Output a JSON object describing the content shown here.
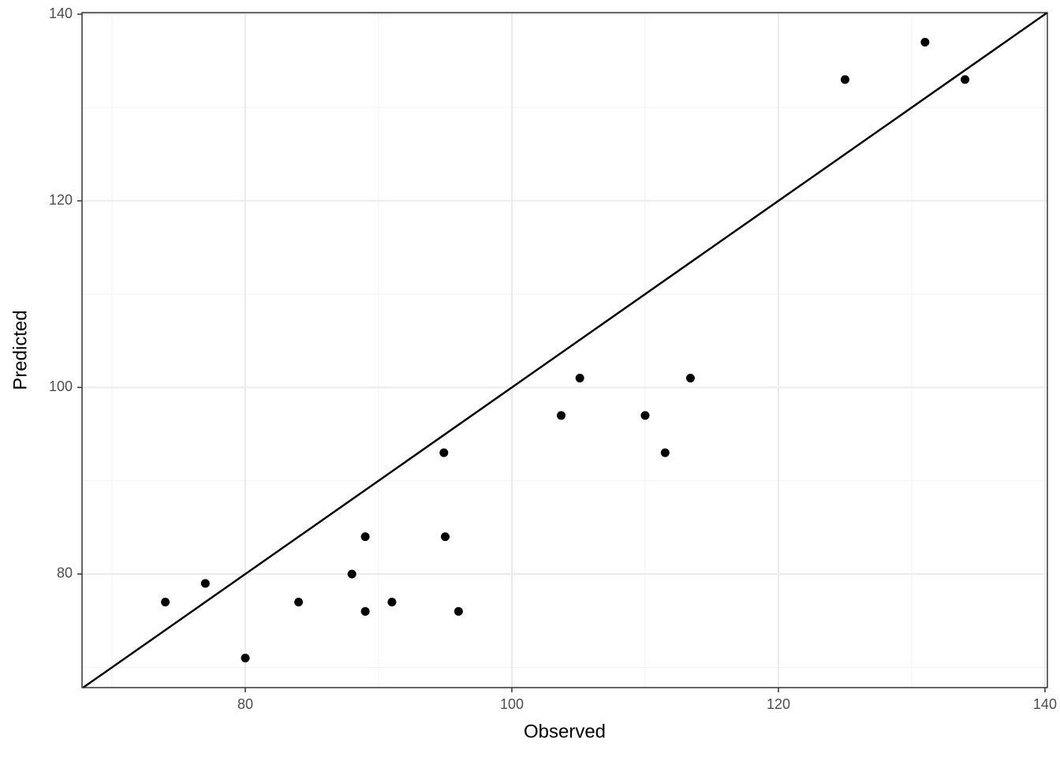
{
  "chart_data": {
    "type": "scatter",
    "x_label": "Observed",
    "y_label": "Predicted",
    "x": [
      74,
      77,
      80,
      84,
      88,
      89,
      89,
      91,
      94.9,
      95,
      96,
      103.7,
      105.1,
      110,
      111.5,
      113.4,
      125,
      131,
      134
    ],
    "series": [
      {
        "color": "#000000",
        "values": [
          77,
          79,
          71,
          77,
          80,
          84,
          76,
          77,
          93,
          84,
          76,
          97,
          101,
          97,
          93,
          101,
          133,
          137,
          133
        ]
      }
    ],
    "xlim": [
      67.75,
      140.18
    ],
    "ylim": [
      67.83,
      140.17
    ],
    "xticks": [
      80,
      100,
      120,
      140
    ],
    "yticks": [
      80,
      100,
      120,
      140
    ],
    "xminor": [
      70,
      90,
      110,
      130
    ],
    "yminor": [
      70,
      90,
      110,
      130
    ],
    "reference_line": {
      "slope": 1,
      "intercept": 0
    },
    "grid": true
  }
}
